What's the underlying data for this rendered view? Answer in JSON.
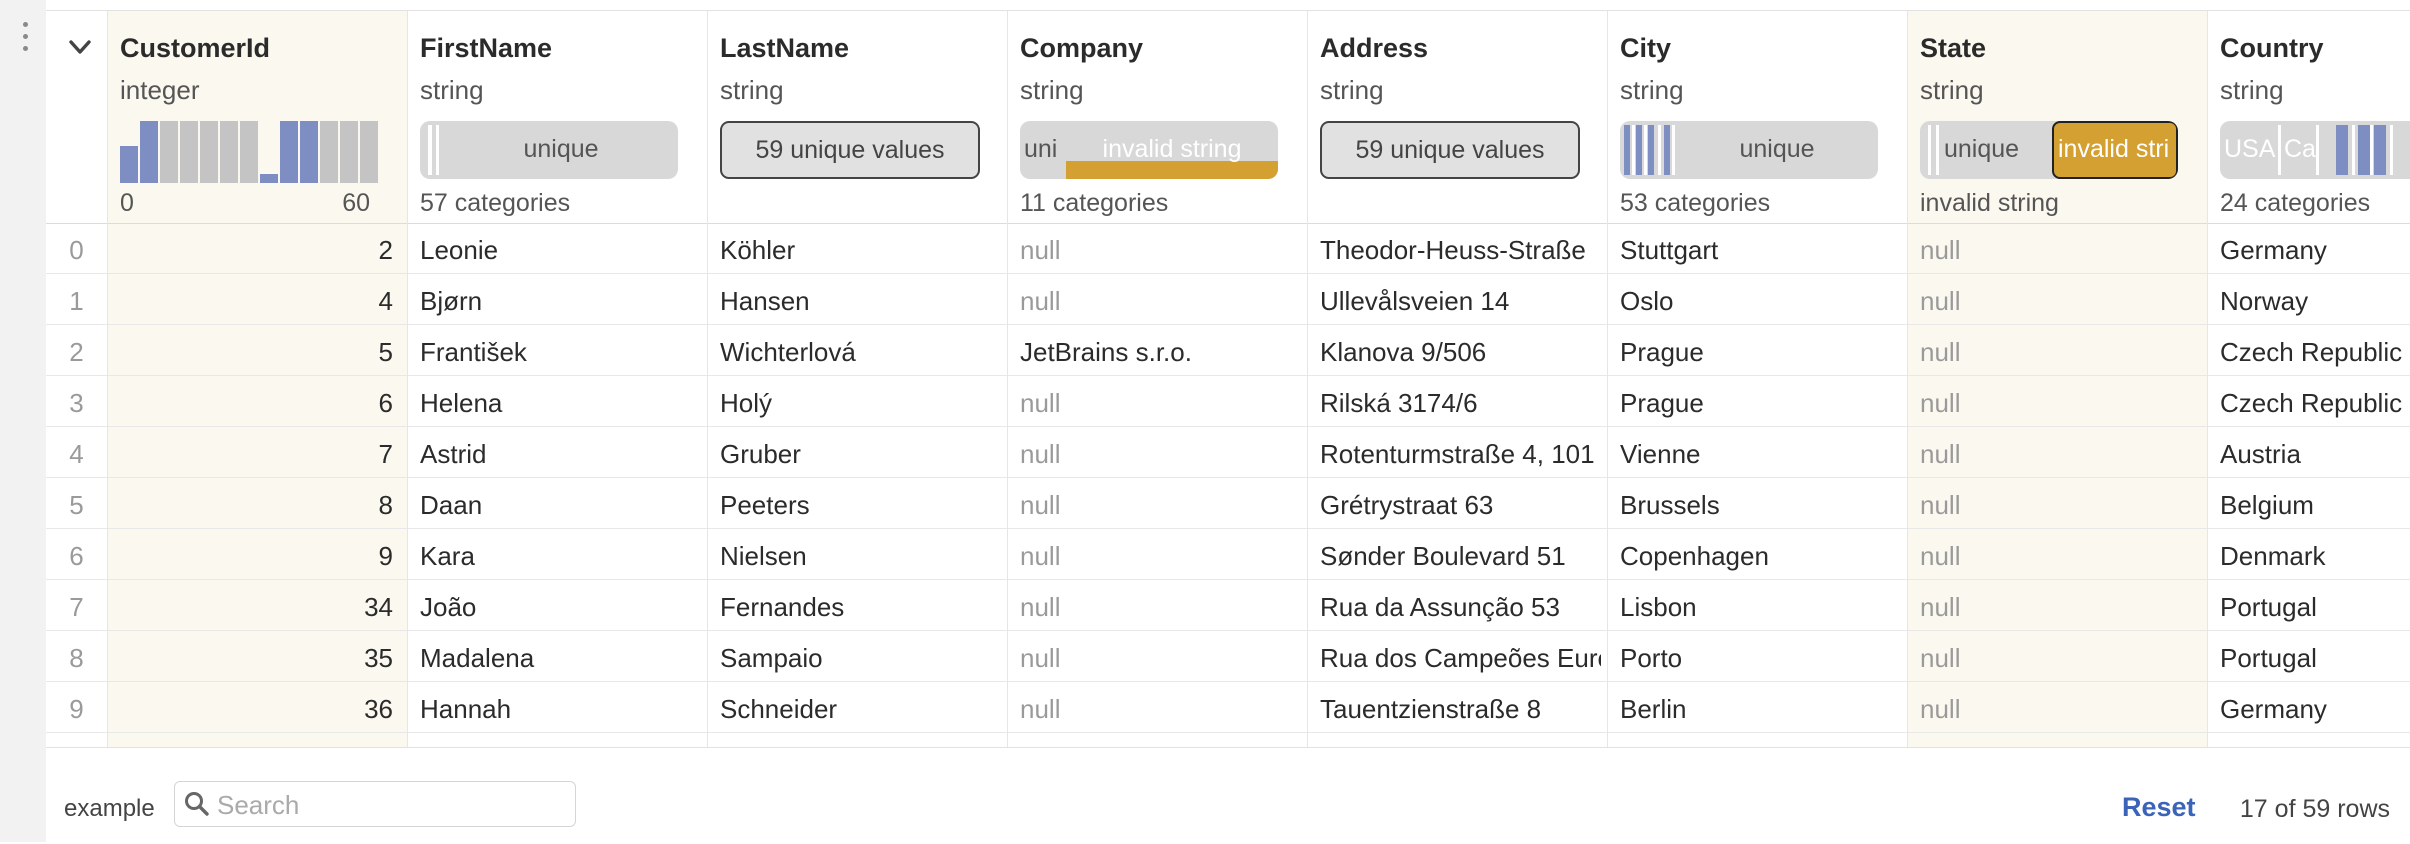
{
  "columns": [
    {
      "name": "CustomerId",
      "type": "integer",
      "summary_kind": "histogram",
      "axis_min": "0",
      "axis_max": "60"
    },
    {
      "name": "FirstName",
      "type": "string",
      "summary_kind": "pill",
      "summary_label": "unique",
      "footer": "57 categories"
    },
    {
      "name": "LastName",
      "type": "string",
      "summary_kind": "outline",
      "summary_label": "59 unique values",
      "footer": ""
    },
    {
      "name": "Company",
      "type": "string",
      "summary_kind": "pill_split",
      "summary_label": "uni",
      "summary_label_2": "invalid string",
      "footer": "11 categories"
    },
    {
      "name": "Address",
      "type": "string",
      "summary_kind": "outline",
      "summary_label": "59 unique values",
      "footer": ""
    },
    {
      "name": "City",
      "type": "string",
      "summary_kind": "pill_stripes",
      "summary_label": "unique",
      "footer": "53 categories"
    },
    {
      "name": "State",
      "type": "string",
      "summary_kind": "pill_invalid",
      "summary_label": "unique",
      "summary_label_2": "invalid stri",
      "footer": "invalid string"
    },
    {
      "name": "Country",
      "type": "string",
      "summary_kind": "pill_country",
      "summary_label": "USA",
      "summary_label_2": "Ca",
      "footer": "24 categories"
    }
  ],
  "rows": [
    {
      "index": "0",
      "CustomerId": "2",
      "FirstName": "Leonie",
      "LastName": "Köhler",
      "Company": "null",
      "Address": "Theodor-Heuss-Straße",
      "City": "Stuttgart",
      "State": "null",
      "Country": "Germany"
    },
    {
      "index": "1",
      "CustomerId": "4",
      "FirstName": "Bjørn",
      "LastName": "Hansen",
      "Company": "null",
      "Address": "Ullevålsveien 14",
      "City": "Oslo",
      "State": "null",
      "Country": "Norway"
    },
    {
      "index": "2",
      "CustomerId": "5",
      "FirstName": "František",
      "LastName": "Wichterlová",
      "Company": "JetBrains s.r.o.",
      "Address": "Klanova 9/506",
      "City": "Prague",
      "State": "null",
      "Country": "Czech Republic"
    },
    {
      "index": "3",
      "CustomerId": "6",
      "FirstName": "Helena",
      "LastName": "Holý",
      "Company": "null",
      "Address": "Rilská 3174/6",
      "City": "Prague",
      "State": "null",
      "Country": "Czech Republic"
    },
    {
      "index": "4",
      "CustomerId": "7",
      "FirstName": "Astrid",
      "LastName": "Gruber",
      "Company": "null",
      "Address": "Rotenturmstraße 4, 101",
      "City": "Vienne",
      "State": "null",
      "Country": "Austria"
    },
    {
      "index": "5",
      "CustomerId": "8",
      "FirstName": "Daan",
      "LastName": "Peeters",
      "Company": "null",
      "Address": "Grétrystraat 63",
      "City": "Brussels",
      "State": "null",
      "Country": "Belgium"
    },
    {
      "index": "6",
      "CustomerId": "9",
      "FirstName": "Kara",
      "LastName": "Nielsen",
      "Company": "null",
      "Address": "Sønder Boulevard 51",
      "City": "Copenhagen",
      "State": "null",
      "Country": "Denmark"
    },
    {
      "index": "7",
      "CustomerId": "34",
      "FirstName": "João",
      "LastName": "Fernandes",
      "Company": "null",
      "Address": "Rua da Assunção 53",
      "City": "Lisbon",
      "State": "null",
      "Country": "Portugal"
    },
    {
      "index": "8",
      "CustomerId": "35",
      "FirstName": "Madalena",
      "LastName": "Sampaio",
      "Company": "null",
      "Address": "Rua dos Campeões Euro",
      "City": "Porto",
      "State": "null",
      "Country": "Portugal"
    },
    {
      "index": "9",
      "CustomerId": "36",
      "FirstName": "Hannah",
      "LastName": "Schneider",
      "Company": "null",
      "Address": "Tauentzienstraße 8",
      "City": "Berlin",
      "State": "null",
      "Country": "Germany"
    }
  ],
  "histogram": {
    "bars": [
      {
        "value": 0.6,
        "selected": true
      },
      {
        "value": 1.0,
        "selected": true
      },
      {
        "value": 1.0,
        "selected": false
      },
      {
        "value": 1.0,
        "selected": false
      },
      {
        "value": 1.0,
        "selected": false
      },
      {
        "value": 1.0,
        "selected": false
      },
      {
        "value": 1.0,
        "selected": false
      },
      {
        "value": 0.15,
        "selected": true
      },
      {
        "value": 1.0,
        "selected": true
      },
      {
        "value": 1.0,
        "selected": true
      },
      {
        "value": 1.0,
        "selected": false
      },
      {
        "value": 1.0,
        "selected": false
      },
      {
        "value": 1.0,
        "selected": false
      }
    ]
  },
  "footer": {
    "example_label": "example",
    "search_placeholder": "Search",
    "reset_label": "Reset",
    "row_count": "17 of 59 rows"
  },
  "colors": {
    "selected": "#7e8ec3",
    "unselected": "#c4c4c4",
    "invalid": "#d4a032",
    "highlight_column": "#fbf8ef",
    "link": "#3b63b8"
  },
  "icons": {
    "menu": "kebab-menu-icon",
    "collapse": "chevron-down-icon",
    "search": "search-icon"
  }
}
